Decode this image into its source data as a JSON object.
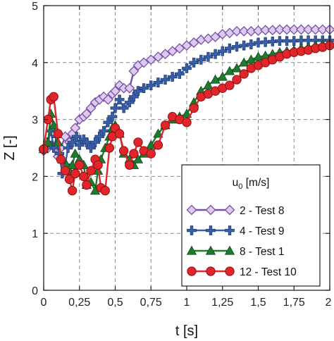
{
  "chart_data": {
    "type": "line",
    "xlabel": "t [s]",
    "ylabel": "Z [-]",
    "xlim": [
      0,
      2
    ],
    "ylim": [
      0,
      5
    ],
    "xticks": [
      0,
      0.25,
      0.5,
      0.75,
      1,
      1.25,
      1.5,
      1.75,
      2
    ],
    "xtick_labels": [
      "0",
      "0,25",
      "0,5",
      "0,75",
      "1",
      "1,25",
      "1,5",
      "1,75",
      "2"
    ],
    "yticks": [
      0,
      1,
      2,
      3,
      4,
      5
    ],
    "ytick_labels": [
      "0",
      "1",
      "2",
      "3",
      "4",
      "5"
    ],
    "grid": true,
    "legend": {
      "title": "u0 [m/s]",
      "title_main": "u",
      "title_sub": "0",
      "title_unit": " [m/s]",
      "placement": "bottom-right"
    },
    "series": [
      {
        "name": "2 - Test 8",
        "color": "#7b4fa6",
        "marker": "diamond",
        "marker_fill": "#dccbee",
        "x": [
          0,
          0.03,
          0.06,
          0.08,
          0.1,
          0.12,
          0.15,
          0.18,
          0.2,
          0.22,
          0.25,
          0.28,
          0.3,
          0.33,
          0.36,
          0.39,
          0.42,
          0.45,
          0.48,
          0.5,
          0.53,
          0.56,
          0.6,
          0.63,
          0.66,
          0.7,
          0.75,
          0.8,
          0.85,
          0.9,
          0.95,
          1.0,
          1.05,
          1.1,
          1.15,
          1.2,
          1.25,
          1.3,
          1.35,
          1.4,
          1.45,
          1.5,
          1.55,
          1.6,
          1.65,
          1.7,
          1.75,
          1.8,
          1.85,
          1.9,
          1.95,
          2.0
        ],
        "y": [
          2.45,
          2.5,
          2.55,
          2.5,
          2.35,
          2.5,
          2.7,
          2.6,
          2.75,
          2.85,
          3.0,
          3.05,
          3.1,
          3.2,
          3.3,
          3.35,
          3.4,
          3.35,
          3.45,
          3.5,
          3.6,
          3.55,
          3.55,
          3.85,
          3.95,
          4.0,
          4.05,
          4.1,
          4.15,
          4.2,
          4.25,
          4.3,
          4.35,
          4.4,
          4.42,
          4.45,
          4.5,
          4.52,
          4.55,
          4.55,
          4.55,
          4.56,
          4.57,
          4.57,
          4.58,
          4.58,
          4.58,
          4.58,
          4.58,
          4.58,
          4.58,
          4.58
        ]
      },
      {
        "name": "4 - Test 9",
        "color": "#3a5fa8",
        "marker": "plus",
        "marker_fill": "#3a5fa8",
        "x": [
          0,
          0.03,
          0.05,
          0.07,
          0.09,
          0.11,
          0.13,
          0.15,
          0.17,
          0.2,
          0.23,
          0.25,
          0.28,
          0.3,
          0.33,
          0.36,
          0.39,
          0.42,
          0.45,
          0.48,
          0.5,
          0.53,
          0.56,
          0.6,
          0.63,
          0.66,
          0.7,
          0.75,
          0.8,
          0.85,
          0.9,
          0.95,
          1.0,
          1.05,
          1.1,
          1.15,
          1.2,
          1.25,
          1.3,
          1.35,
          1.4,
          1.45,
          1.5,
          1.55,
          1.6,
          1.65,
          1.7,
          1.75,
          1.8,
          1.85,
          1.9,
          1.95,
          2.0
        ],
        "y": [
          2.48,
          2.6,
          2.8,
          2.5,
          2.7,
          2.4,
          2.05,
          2.2,
          2.5,
          2.6,
          2.7,
          2.55,
          2.65,
          2.6,
          2.5,
          2.6,
          2.7,
          2.8,
          2.95,
          3.05,
          3.2,
          3.35,
          3.2,
          3.3,
          3.4,
          3.5,
          3.55,
          3.6,
          3.65,
          3.7,
          3.75,
          3.8,
          3.9,
          4.0,
          4.05,
          4.1,
          4.15,
          4.2,
          4.25,
          4.28,
          4.3,
          4.32,
          4.35,
          4.36,
          4.37,
          4.38,
          4.38,
          4.38,
          4.39,
          4.39,
          4.39,
          4.39,
          4.39
        ]
      },
      {
        "name": "8 - Test 1",
        "color": "#1e7a2e",
        "marker": "triangle",
        "marker_fill": "#1e7a2e",
        "x": [
          0,
          0.03,
          0.05,
          0.07,
          0.1,
          0.13,
          0.16,
          0.18,
          0.2,
          0.22,
          0.25,
          0.28,
          0.3,
          0.33,
          0.36,
          0.38,
          0.4,
          0.43,
          0.46,
          0.48,
          0.5,
          0.53,
          0.56,
          0.6,
          0.63,
          0.66,
          0.7,
          0.75,
          0.8,
          0.85,
          0.9,
          0.95,
          1.0,
          1.05,
          1.1,
          1.15,
          1.2,
          1.25,
          1.3,
          1.35,
          1.4,
          1.45,
          1.5,
          1.55,
          1.6,
          1.65,
          1.7,
          1.75,
          1.8,
          1.85,
          1.9,
          1.95,
          2.0
        ],
        "y": [
          2.48,
          2.6,
          3.1,
          2.9,
          2.6,
          2.3,
          2.2,
          2.1,
          2.2,
          2.4,
          2.3,
          2.2,
          1.85,
          1.9,
          1.75,
          2.1,
          2.3,
          2.5,
          2.7,
          2.85,
          2.9,
          2.75,
          2.4,
          2.3,
          2.2,
          2.3,
          2.4,
          2.55,
          2.75,
          2.9,
          3.0,
          3.05,
          3.1,
          3.3,
          3.5,
          3.6,
          3.7,
          3.75,
          3.85,
          3.9,
          4.0,
          4.05,
          4.1,
          4.12,
          4.15,
          4.18,
          4.2,
          4.22,
          4.25,
          4.27,
          4.3,
          4.32,
          4.33
        ]
      },
      {
        "name": "12 - Test 10",
        "color": "#e0262a",
        "marker": "circle",
        "marker_fill": "#e0262a",
        "x": [
          0,
          0.03,
          0.05,
          0.07,
          0.1,
          0.12,
          0.15,
          0.18,
          0.2,
          0.22,
          0.25,
          0.28,
          0.3,
          0.33,
          0.36,
          0.38,
          0.4,
          0.43,
          0.46,
          0.48,
          0.5,
          0.53,
          0.56,
          0.6,
          0.63,
          0.66,
          0.7,
          0.75,
          0.8,
          0.85,
          0.9,
          0.95,
          1.0,
          1.05,
          1.1,
          1.15,
          1.2,
          1.25,
          1.3,
          1.35,
          1.4,
          1.45,
          1.5,
          1.55,
          1.6,
          1.65,
          1.7,
          1.75,
          1.8,
          1.85,
          1.9,
          1.95,
          2.0
        ],
        "y": [
          2.48,
          3.0,
          3.35,
          3.4,
          2.75,
          2.3,
          2.1,
          1.95,
          1.75,
          2.05,
          2.2,
          2.0,
          1.85,
          2.1,
          2.3,
          2.2,
          1.8,
          1.75,
          2.5,
          2.7,
          2.85,
          2.75,
          2.45,
          2.2,
          2.4,
          2.6,
          2.45,
          2.4,
          2.55,
          2.9,
          3.05,
          3.0,
          2.95,
          3.2,
          3.4,
          3.45,
          3.5,
          3.55,
          3.6,
          3.7,
          3.8,
          3.9,
          3.95,
          4.0,
          4.05,
          4.1,
          4.15,
          4.18,
          4.2,
          4.22,
          4.25,
          4.27,
          4.3
        ]
      }
    ]
  }
}
